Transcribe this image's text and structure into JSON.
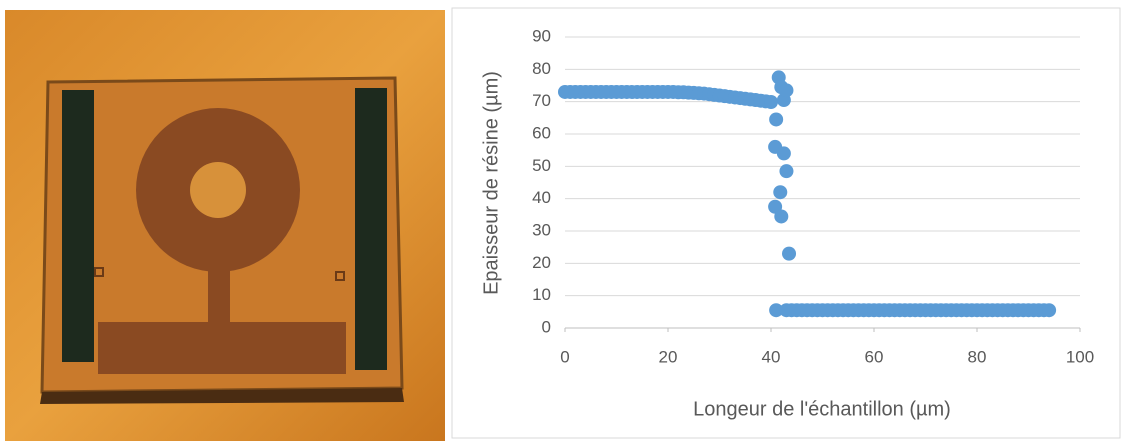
{
  "chart_data": {
    "type": "scatter",
    "x_label": "Longeur de l'échantillon (µm)",
    "y_label": "Epaisseur de résine (µm)",
    "color": "#5b9bd5",
    "xlim": [
      0,
      100
    ],
    "xticks": [
      0,
      20,
      40,
      60,
      80,
      100
    ],
    "ylim": [
      0,
      90
    ],
    "yticks": [
      0,
      10,
      20,
      30,
      40,
      50,
      60,
      70,
      80,
      90
    ],
    "grid": true,
    "x": [
      0,
      1,
      2,
      3,
      4,
      5,
      6,
      7,
      8,
      9,
      10,
      11,
      12,
      13,
      14,
      15,
      16,
      17,
      18,
      19,
      20,
      21,
      22,
      23,
      24,
      25,
      26,
      27,
      28,
      29,
      30,
      31,
      32,
      33,
      34,
      35,
      36,
      37,
      38,
      39,
      40,
      41.5,
      42,
      42.5,
      43,
      41,
      40.8,
      42.5,
      43,
      41.8,
      40.8,
      42,
      43.5,
      41,
      43,
      44,
      45,
      46,
      47,
      48,
      49,
      50,
      51,
      52,
      53,
      54,
      55,
      56,
      57,
      58,
      59,
      60,
      61,
      62,
      63,
      64,
      65,
      66,
      67,
      68,
      69,
      70,
      71,
      72,
      73,
      74,
      75,
      76,
      77,
      78,
      79,
      80,
      81,
      82,
      83,
      84,
      85,
      86,
      87,
      88,
      89,
      90,
      91,
      92,
      93,
      94
    ],
    "values": [
      73,
      73,
      73,
      73,
      73,
      73,
      73,
      73,
      73,
      73,
      73,
      73,
      73,
      73,
      73,
      73,
      73,
      73,
      73,
      73,
      73,
      73,
      72.9,
      72.9,
      72.8,
      72.7,
      72.6,
      72.5,
      72.3,
      72.1,
      71.9,
      71.7,
      71.5,
      71.3,
      71.1,
      70.9,
      70.7,
      70.5,
      70.3,
      70.1,
      69.9,
      77.5,
      74.5,
      70.5,
      73.5,
      64.5,
      56,
      54,
      48.5,
      42,
      37.5,
      34.5,
      23,
      5.5,
      5.5,
      5.5,
      5.5,
      5.5,
      5.5,
      5.5,
      5.5,
      5.5,
      5.5,
      5.5,
      5.5,
      5.5,
      5.5,
      5.5,
      5.5,
      5.5,
      5.5,
      5.5,
      5.5,
      5.5,
      5.5,
      5.5,
      5.5,
      5.5,
      5.5,
      5.5,
      5.5,
      5.5,
      5.5,
      5.5,
      5.5,
      5.5,
      5.5,
      5.5,
      5.5,
      5.5,
      5.5,
      5.5,
      5.5,
      5.5,
      5.5,
      5.5,
      5.5,
      5.5,
      5.5,
      5.5,
      5.5,
      5.5,
      5.5,
      5.5,
      5.5,
      5.5
    ]
  }
}
